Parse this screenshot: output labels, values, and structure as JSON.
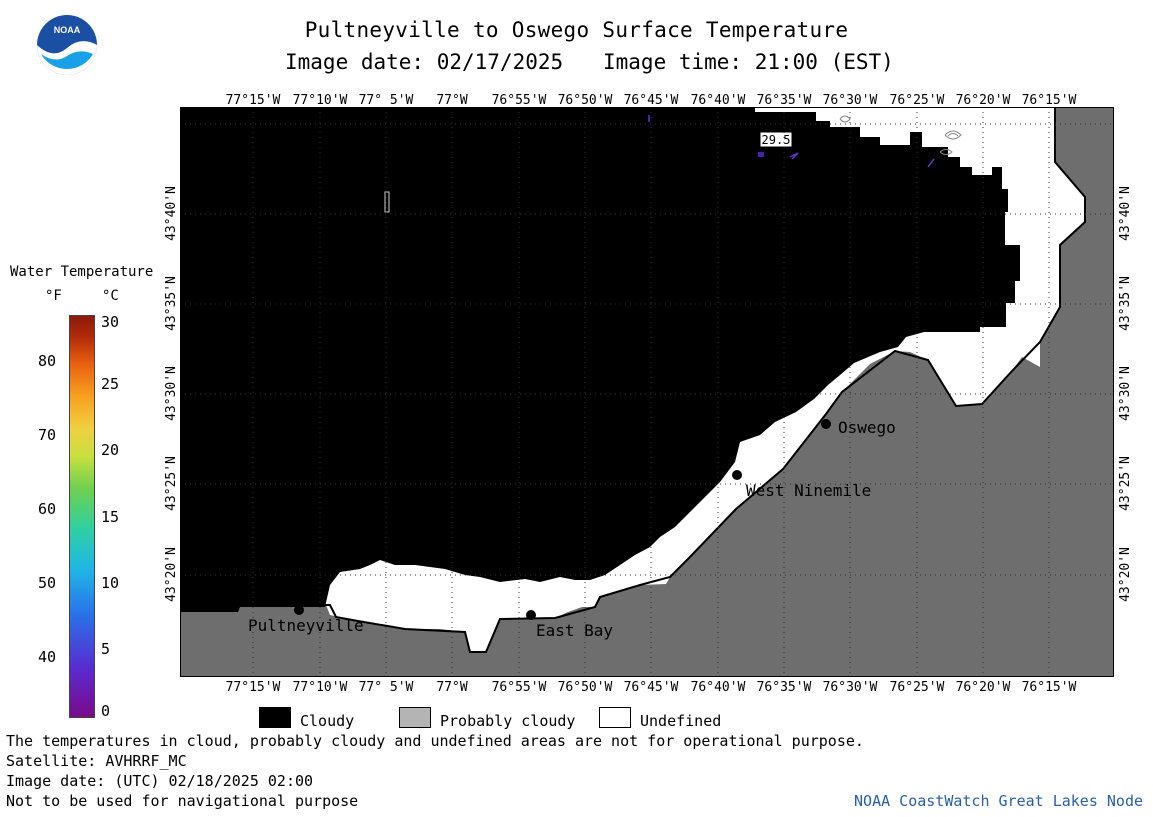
{
  "header": {
    "title": "Pultneyville to Oswego Surface Temperature",
    "image_date": "Image date: 02/17/2025",
    "image_time": "Image time: 21:00 (EST)"
  },
  "logo": {
    "text": "NOAA"
  },
  "map": {
    "lon_labels": [
      "77°15'W",
      "77°10'W",
      "77° 5'W",
      "77°W",
      "76°55'W",
      "76°50'W",
      "76°45'W",
      "76°40'W",
      "76°35'W",
      "76°30'W",
      "76°25'W",
      "76°20'W",
      "76°15'W"
    ],
    "lat_labels": [
      "43°40'N",
      "43°35'N",
      "43°30'N",
      "43°25'N",
      "43°20'N"
    ],
    "places": {
      "pultneyville": "Pultneyville",
      "east_bay": "East Bay",
      "west_ninemile": "West Ninemile",
      "oswego": "Oswego"
    },
    "contour_label": "29.5",
    "colors": {
      "cloudy": "#000000",
      "land": "#6e6e6e",
      "undefined": "#ffffff",
      "probably_cloudy": "#b4b4b4"
    }
  },
  "legend": {
    "title": "Water Temperature",
    "unit_f": "°F",
    "unit_c": "°C",
    "f_ticks": [
      "80",
      "70",
      "60",
      "50",
      "40"
    ],
    "c_ticks": [
      "30",
      "25",
      "20",
      "15",
      "10",
      "5",
      "0"
    ],
    "keys": {
      "cloudy": "Cloudy",
      "probably_cloudy": "Probably cloudy",
      "undefined": "Undefined"
    }
  },
  "footer": {
    "note": "The temperatures in cloud, probably cloudy and undefined areas are not for operational purpose.",
    "satellite": "Satellite: AVHRRF_MC",
    "utc_date": "Image date: (UTC) 02/18/2025  02:00",
    "nav_warning": "Not to be used for navigational purpose",
    "credit": "NOAA CoastWatch Great Lakes Node"
  }
}
